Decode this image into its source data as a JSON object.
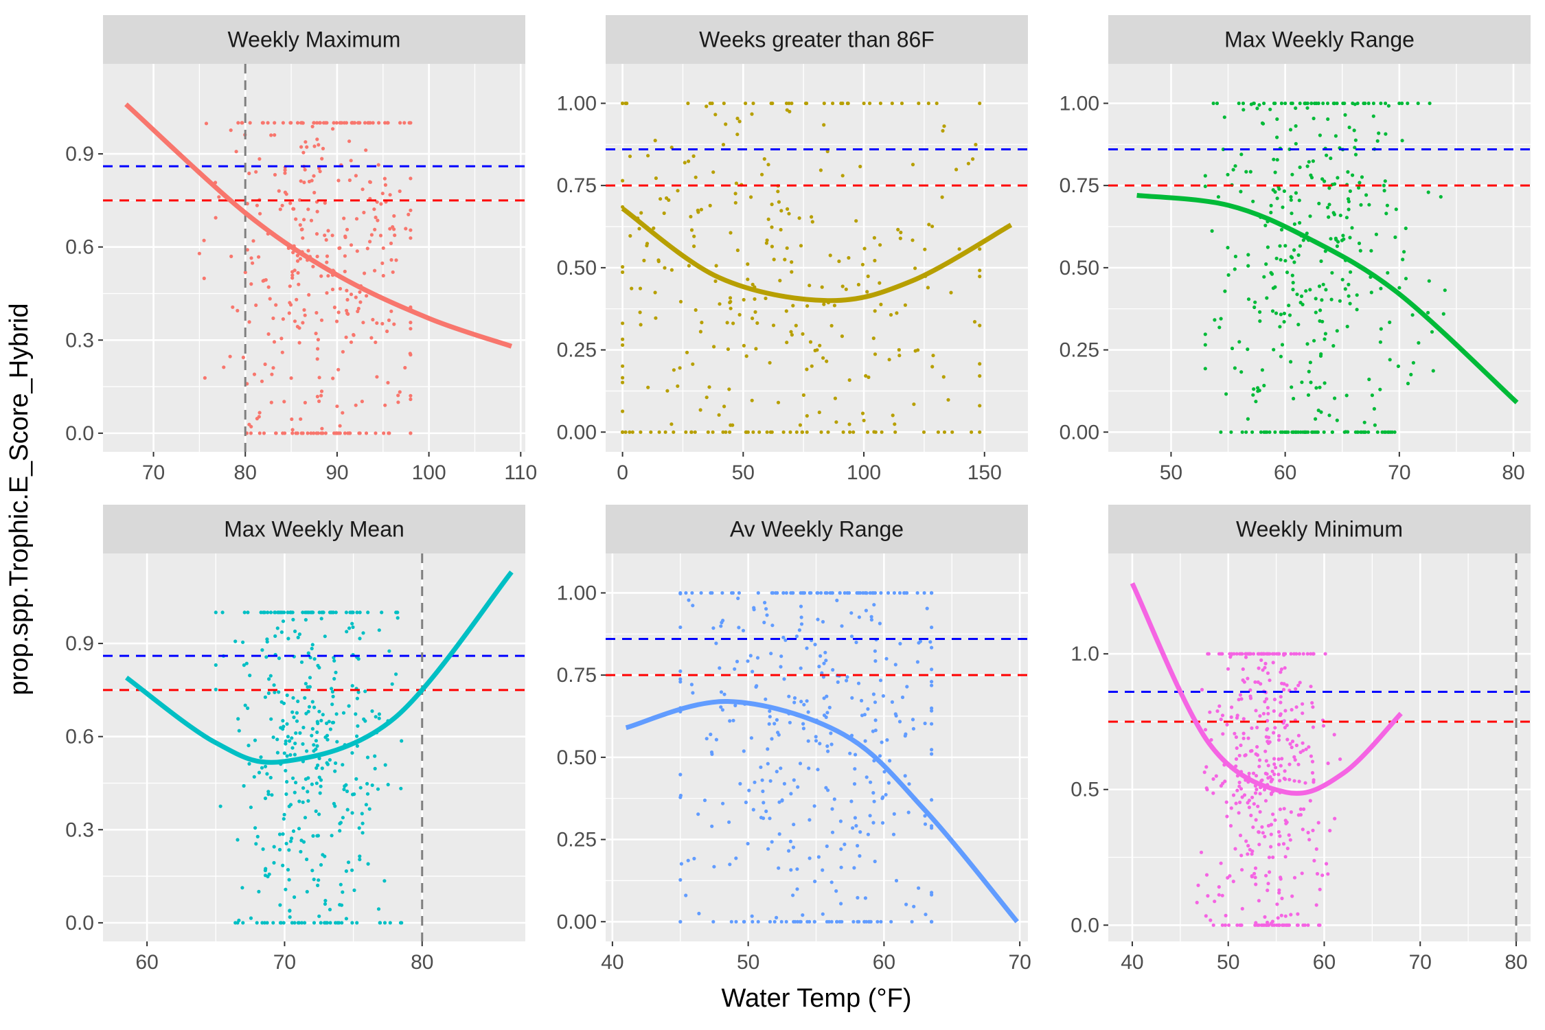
{
  "figure": {
    "ylabel": "prop.spp.Trophic.E_Score_Hybrid",
    "xlabel": "Water Temp (°F)"
  },
  "colors": {
    "panel_bg": "#ebebeb",
    "strip_bg": "#d9d9d9",
    "grid": "#ffffff",
    "blue_line": "#0000ff",
    "red_line": "#ff0000",
    "vline": "#7f7f7f"
  },
  "chart_data": [
    {
      "type": "scatter",
      "title": "Weekly Maximum",
      "color": "#f8766d",
      "xlim": [
        64.5,
        110.5
      ],
      "ylim": [
        -0.06,
        1.19
      ],
      "xticks": [
        70,
        80,
        90,
        100,
        110
      ],
      "yticks": [
        0.0,
        0.3,
        0.6,
        0.9
      ],
      "ytick_labels": [
        "0.0",
        "0.3",
        "0.6",
        "0.9"
      ],
      "hlines": [
        {
          "y": 0.86,
          "color": "#0000ff"
        },
        {
          "y": 0.75,
          "color": "#ff0000"
        }
      ],
      "vlines": [
        80
      ],
      "fit": {
        "x": [
          67,
          80,
          90,
          100,
          109
        ],
        "y": [
          1.06,
          0.71,
          0.51,
          0.37,
          0.28
        ]
      },
      "points": {
        "x_range": [
          75,
          98
        ],
        "x_center": 89,
        "x_spread": 5.5,
        "y_center": 0.55,
        "y_spread": 0.3,
        "n": 380
      }
    },
    {
      "type": "scatter",
      "title": "Weeks greater than 86F",
      "color": "#b79f00",
      "xlim": [
        -7,
        168
      ],
      "ylim": [
        -0.06,
        1.12
      ],
      "xticks": [
        0,
        50,
        100,
        150
      ],
      "yticks": [
        0.0,
        0.25,
        0.5,
        0.75,
        1.0
      ],
      "ytick_labels": [
        "0.00",
        "0.25",
        "0.50",
        "0.75",
        "1.00"
      ],
      "hlines": [
        {
          "y": 0.86,
          "color": "#0000ff"
        },
        {
          "y": 0.75,
          "color": "#ff0000"
        }
      ],
      "vlines": [],
      "fit": {
        "x": [
          0,
          40,
          85,
          120,
          161
        ],
        "y": [
          0.68,
          0.47,
          0.4,
          0.46,
          0.63
        ]
      },
      "points": {
        "x_range": [
          0,
          148
        ],
        "x_center": 60,
        "x_spread": 45,
        "y_center": 0.5,
        "y_spread": 0.3,
        "n": 330
      }
    },
    {
      "type": "scatter",
      "title": "Max Weekly Range",
      "color": "#00ba38",
      "xlim": [
        44.5,
        81.5
      ],
      "ylim": [
        -0.06,
        1.12
      ],
      "xticks": [
        50,
        60,
        70,
        80
      ],
      "yticks": [
        0.0,
        0.25,
        0.5,
        0.75,
        1.0
      ],
      "ytick_labels": [
        "0.00",
        "0.25",
        "0.50",
        "0.75",
        "1.00"
      ],
      "hlines": [
        {
          "y": 0.86,
          "color": "#0000ff"
        },
        {
          "y": 0.75,
          "color": "#ff0000"
        }
      ],
      "vlines": [],
      "fit": {
        "x": [
          47,
          55,
          62,
          70,
          80.3
        ],
        "y": [
          0.72,
          0.69,
          0.59,
          0.42,
          0.09
        ]
      },
      "points": {
        "x_range": [
          53,
          74
        ],
        "x_center": 63,
        "x_spread": 4.5,
        "y_center": 0.55,
        "y_spread": 0.3,
        "n": 400
      }
    },
    {
      "type": "scatter",
      "title": "Max Weekly Mean",
      "color": "#00bfc4",
      "xlim": [
        56.8,
        87.5
      ],
      "ylim": [
        -0.06,
        1.19
      ],
      "xticks": [
        60,
        70,
        80
      ],
      "yticks": [
        0.0,
        0.3,
        0.6,
        0.9
      ],
      "ytick_labels": [
        "0.0",
        "0.3",
        "0.6",
        "0.9"
      ],
      "hlines": [
        {
          "y": 0.86,
          "color": "#0000ff"
        },
        {
          "y": 0.75,
          "color": "#ff0000"
        }
      ],
      "vlines": [
        80
      ],
      "fit": {
        "x": [
          58.5,
          65,
          70,
          78,
          86.5
        ],
        "y": [
          0.79,
          0.58,
          0.52,
          0.66,
          1.13
        ]
      },
      "points": {
        "x_range": [
          65,
          78.5
        ],
        "x_center": 72,
        "x_spread": 3,
        "y_center": 0.55,
        "y_spread": 0.3,
        "n": 400
      }
    },
    {
      "type": "scatter",
      "title": "Av Weekly Range",
      "color": "#619cff",
      "xlim": [
        39.5,
        70.6
      ],
      "ylim": [
        -0.06,
        1.12
      ],
      "xticks": [
        40,
        50,
        60,
        70
      ],
      "yticks": [
        0.0,
        0.25,
        0.5,
        0.75,
        1.0
      ],
      "ytick_labels": [
        "0.00",
        "0.25",
        "0.50",
        "0.75",
        "1.00"
      ],
      "hlines": [
        {
          "y": 0.86,
          "color": "#0000ff"
        },
        {
          "y": 0.75,
          "color": "#ff0000"
        }
      ],
      "vlines": [],
      "fit": {
        "x": [
          41,
          48.5,
          57,
          63,
          69.8
        ],
        "y": [
          0.59,
          0.67,
          0.57,
          0.34,
          0.0
        ]
      },
      "points": {
        "x_range": [
          45,
          63.5
        ],
        "x_center": 55,
        "x_spread": 5,
        "y_center": 0.55,
        "y_spread": 0.3,
        "n": 420
      }
    },
    {
      "type": "scatter",
      "title": "Weekly Minimum",
      "color": "#f564e3",
      "xlim": [
        37.5,
        81.5
      ],
      "ylim": [
        -0.06,
        1.37
      ],
      "xticks": [
        40,
        50,
        60,
        70,
        80
      ],
      "yticks": [
        0.0,
        0.5,
        1.0
      ],
      "ytick_labels": [
        "0.0",
        "0.5",
        "1.0"
      ],
      "hlines": [
        {
          "y": 0.86,
          "color": "#0000ff"
        },
        {
          "y": 0.75,
          "color": "#ff0000"
        }
      ],
      "vlines": [
        80
      ],
      "fit": {
        "x": [
          40,
          48,
          56,
          62,
          68
        ],
        "y": [
          1.26,
          0.67,
          0.49,
          0.56,
          0.78
        ]
      },
      "points": {
        "x_range": [
          44,
          62
        ],
        "x_center": 54,
        "x_spread": 3,
        "y_center": 0.55,
        "y_spread": 0.3,
        "n": 420
      }
    }
  ]
}
